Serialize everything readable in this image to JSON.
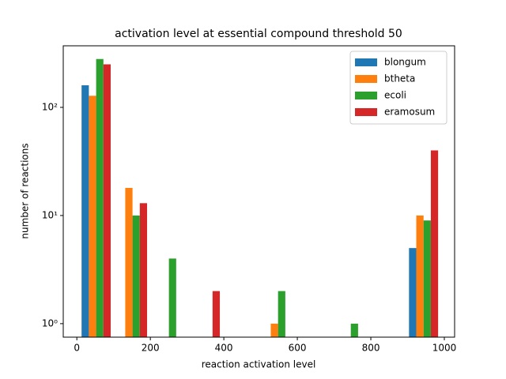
{
  "chart_data": {
    "type": "histogram",
    "title": "activation level at essential compound threshold 50",
    "xlabel": "reaction activation level",
    "ylabel": "number of reactions",
    "bins": [
      3,
      102,
      201,
      300,
      399,
      498,
      597,
      696,
      795,
      894,
      993
    ],
    "series": [
      {
        "name": "blongum",
        "color": "#1f77b4",
        "values": [
          160,
          0,
          0,
          0,
          0,
          0,
          0,
          0,
          0,
          5
        ]
      },
      {
        "name": "btheta",
        "color": "#ff7f0e",
        "values": [
          128,
          18,
          0,
          0,
          0,
          1,
          0,
          0,
          0,
          10
        ]
      },
      {
        "name": "ecoli",
        "color": "#2ca02c",
        "values": [
          280,
          10,
          4,
          0,
          0,
          2,
          0,
          1,
          0,
          9
        ]
      },
      {
        "name": "eramosum",
        "color": "#d62728",
        "values": [
          250,
          13,
          0,
          2,
          0,
          0,
          0,
          0,
          0,
          40
        ]
      }
    ],
    "xlim": [
      -37,
      1028
    ],
    "xticks": [
      0,
      200,
      400,
      600,
      800,
      1000
    ],
    "ylim": [
      0.75,
      371
    ],
    "yticks": [
      {
        "value": 1,
        "label": "10⁰"
      },
      {
        "value": 10,
        "label": "10¹"
      },
      {
        "value": 100,
        "label": "10²"
      }
    ],
    "log_y": true,
    "legend": "upper right"
  }
}
